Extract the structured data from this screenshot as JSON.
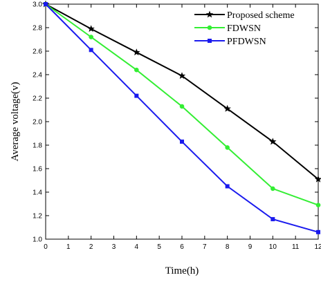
{
  "chart_data": {
    "type": "line",
    "xlabel": "Time(h)",
    "ylabel": "Average voltage(v)",
    "xlim": [
      0,
      12
    ],
    "ylim": [
      1.0,
      3.0
    ],
    "x_ticks": [
      "0",
      "1",
      "2",
      "3",
      "4",
      "5",
      "6",
      "7",
      "8",
      "9",
      "10",
      "11",
      "12"
    ],
    "y_ticks": [
      "1.0",
      "1.2",
      "1.4",
      "1.6",
      "1.8",
      "2.0",
      "2.2",
      "2.4",
      "2.6",
      "2.8",
      "3.0"
    ],
    "grid": false,
    "legend_position": "top-right",
    "x": [
      0,
      2,
      4,
      6,
      8,
      10,
      12
    ],
    "series": [
      {
        "name": "Proposed scheme",
        "color": "#000000",
        "marker": "star",
        "values": [
          3.0,
          2.79,
          2.59,
          2.39,
          2.11,
          1.83,
          1.51
        ]
      },
      {
        "name": "FDWSN",
        "color": "#33ee33",
        "marker": "circle",
        "values": [
          3.0,
          2.72,
          2.44,
          2.13,
          1.78,
          1.43,
          1.29
        ]
      },
      {
        "name": "PFDWSN",
        "color": "#1a1aee",
        "marker": "square",
        "values": [
          3.0,
          2.61,
          2.22,
          1.83,
          1.45,
          1.17,
          1.06
        ]
      }
    ]
  }
}
